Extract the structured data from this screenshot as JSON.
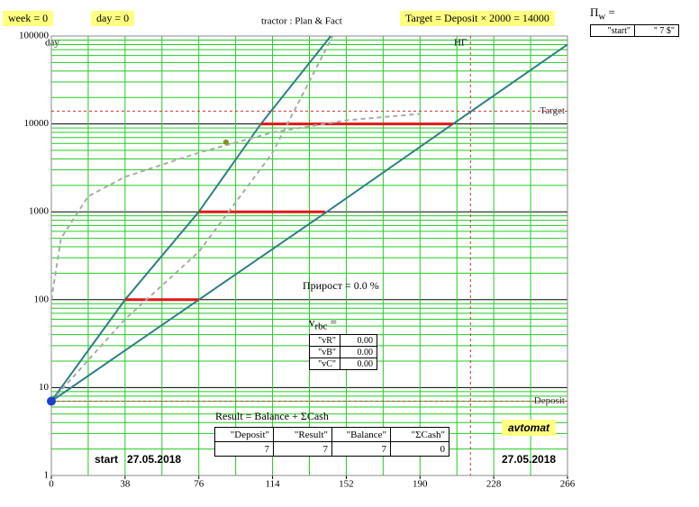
{
  "chart_data": {
    "type": "line",
    "title": "tractor :  Plan & Fact",
    "y_label": "day",
    "yscale": "log",
    "xlim": [
      0,
      266
    ],
    "xticks": [
      0,
      38,
      76,
      114,
      152,
      190,
      228,
      266
    ],
    "ylim": [
      1,
      100000
    ],
    "yticks": [
      1,
      10,
      100,
      1000,
      10000,
      100000
    ],
    "grid": true,
    "grid_color": "#22cc22",
    "decade_color": "#000000",
    "series": [
      {
        "color": "#2e7f86",
        "dash": false,
        "x": [
          0,
          38,
          76,
          108,
          144
        ],
        "values": [
          7,
          100,
          1000,
          10000,
          100000
        ]
      },
      {
        "color": "#2e7f86",
        "dash": false,
        "x": [
          0,
          76,
          142,
          207,
          266
        ],
        "values": [
          7,
          100,
          1000,
          10000,
          80000
        ]
      },
      {
        "color": "#e01818",
        "dash": false,
        "x": [
          38,
          76,
          null,
          76,
          141,
          null,
          108,
          207
        ],
        "values": [
          100,
          100,
          null,
          1000,
          1000,
          null,
          10000,
          10000
        ]
      },
      {
        "color": "#aaaaaa",
        "dash": true,
        "x": [
          0,
          5,
          19,
          38,
          76,
          114,
          152,
          190
        ],
        "values": [
          100,
          500,
          1500,
          2500,
          4700,
          8000,
          11000,
          13000
        ]
      },
      {
        "color": "#aaaaaa",
        "dash": true,
        "x": [
          0,
          38,
          76,
          114,
          145
        ],
        "values": [
          7,
          60,
          350,
          4700,
          100000
        ]
      }
    ],
    "points": [
      {
        "x": 90,
        "value": 6200,
        "color": "#8b8b1a",
        "r": 3
      },
      {
        "x": 0,
        "value": 7,
        "color": "#1f3fd0",
        "r": 5
      }
    ],
    "hlines": [
      {
        "value": 14000,
        "label": "Target",
        "color": "#d03030"
      },
      {
        "value": 7,
        "label": "Deposit",
        "color": "#d03030"
      }
    ],
    "vlines": [
      {
        "value": 216,
        "label": "НГ",
        "color": "#d03030"
      }
    ],
    "start_label": "start",
    "start_date": "27.05.2018",
    "end_date": "27.05.2018"
  },
  "header": {
    "week": "week = 0",
    "day": "day = 0",
    "target_formula": "Target = Deposit × 2000 = 14000"
  },
  "pw": {
    "symbol": "П",
    "subscript": "w",
    "operator": "=",
    "cells": [
      "\"start\"",
      "\" 7 $\""
    ]
  },
  "growth": "Прирост = 0.0  %",
  "vrbc": {
    "symbol": "v",
    "subscript": "rbc",
    "operator": "=",
    "rows": [
      [
        "\"vR\"",
        "0.00"
      ],
      [
        "\"vB\"",
        "0.00"
      ],
      [
        "\"vC\"",
        "0.00"
      ]
    ]
  },
  "result": {
    "formula": "Result = Balance + ΣCash",
    "header": [
      "\"Deposit\"",
      "\"Result\"",
      "\"Balance\"",
      "\"ΣCash\""
    ],
    "row": [
      7,
      7,
      7,
      0
    ]
  },
  "mode": "avtomat"
}
